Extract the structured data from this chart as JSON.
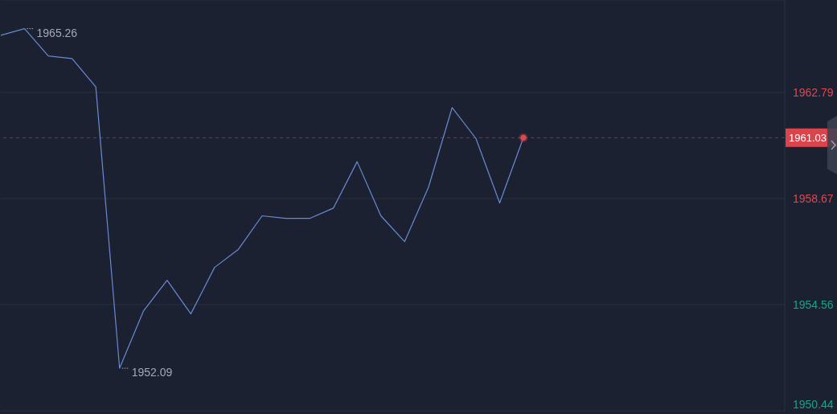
{
  "chart_data": {
    "type": "line",
    "categories": [
      null,
      null,
      null,
      null,
      null,
      null,
      null,
      null,
      null,
      null,
      null,
      null,
      null,
      null,
      null,
      null,
      null,
      null,
      null,
      null,
      null,
      null,
      null,
      null,
      null,
      null,
      null,
      null,
      null,
      null,
      null,
      null,
      null,
      null
    ],
    "series": [
      {
        "color": "#6a8ad4",
        "values": [
          1965.0,
          1965.26,
          1964.2,
          1964.1,
          1963.0,
          1952.09,
          1954.3,
          1955.5,
          1954.2,
          1956.0,
          1956.7,
          1958.0,
          1957.9,
          1957.9,
          1958.3,
          1960.1,
          1958.0,
          1957.0,
          1959.1,
          1962.2,
          1961.0,
          1958.5,
          1961.03,
          null,
          null,
          null,
          null,
          null,
          null,
          null,
          null,
          null,
          null,
          null
        ]
      },
      {
        "type": "scatter",
        "color": "#e0474f",
        "values": [
          null,
          null,
          null,
          null,
          null,
          null,
          null,
          null,
          null,
          null,
          null,
          null,
          null,
          null,
          null,
          null,
          null,
          null,
          null,
          null,
          null,
          null,
          1961.03,
          null,
          null,
          null,
          null,
          null,
          null,
          null,
          null,
          null,
          null,
          null
        ]
      }
    ],
    "ylim": [
      1950.44,
      1966.37
    ],
    "yticks": [
      1950.44,
      1954.56,
      1958.67,
      1962.79
    ],
    "grid": "y",
    "tick_labels": "y",
    "ref_lines": [
      {
        "axis": "y",
        "value": 1961.03,
        "label": "1961.03",
        "color": "#d9444d",
        "line_style": "dashed"
      }
    ],
    "annotations": [
      "1965.26",
      "1952.09"
    ]
  }
}
